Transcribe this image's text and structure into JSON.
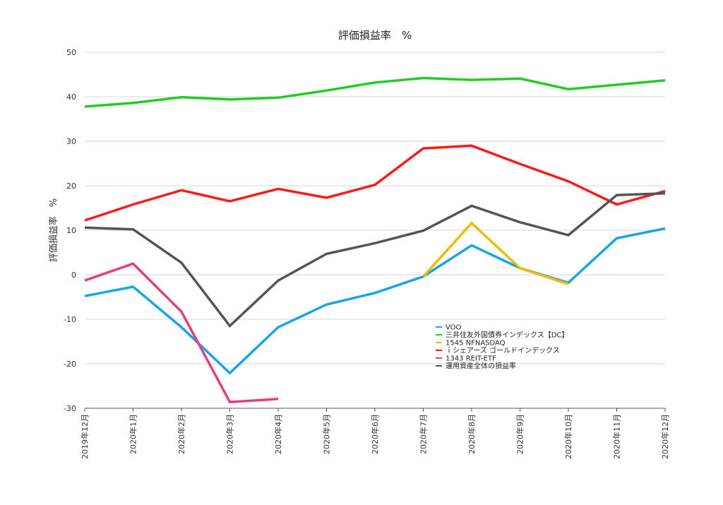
{
  "chart_data": {
    "type": "line",
    "title": "評価損益率　%",
    "xlabel": "",
    "ylabel": "評価損益率　%",
    "ylim": [
      -30,
      50
    ],
    "yticks": [
      50,
      40,
      30,
      20,
      10,
      0,
      -10,
      -20,
      -30
    ],
    "grid": true,
    "legend_position": "lower-right",
    "categories": [
      "2019年12月",
      "2020年1月",
      "2020年2月",
      "2020年3月",
      "2020年4月",
      "2020年5月",
      "2020年6月",
      "2020年7月",
      "2020年8月",
      "2020年9月",
      "2020年10月",
      "2020年11月",
      "2020年12月"
    ],
    "series": [
      {
        "name": "VOO",
        "color": "#1aa3ee",
        "values": [
          -4.8,
          -2.7,
          -11.8,
          -22.1,
          -11.8,
          -6.7,
          -4.1,
          -0.4,
          6.6,
          1.5,
          -1.8,
          8.2,
          10.4
        ]
      },
      {
        "name": "三井住友外国債券インデックス【DC】",
        "color": "#22cc22",
        "values": [
          37.8,
          38.6,
          39.9,
          39.4,
          39.8,
          41.4,
          43.2,
          44.2,
          43.8,
          44.1,
          41.7,
          42.7,
          43.7
        ]
      },
      {
        "name": "1545 NFNASDAQ",
        "color": "#f5b800",
        "values": [
          null,
          null,
          null,
          null,
          null,
          null,
          null,
          -0.4,
          11.6,
          1.5,
          -2.1,
          null,
          null
        ]
      },
      {
        "name": "ｉシェアーズ ゴールドインデックス",
        "color": "#ff1a1a",
        "values": [
          12.2,
          15.8,
          19.0,
          16.5,
          19.3,
          17.3,
          20.2,
          28.4,
          29.0,
          24.9,
          21.0,
          15.8,
          18.8
        ]
      },
      {
        "name": "1343 REIT-ETF",
        "color": "#e0407f",
        "values": [
          -1.3,
          2.5,
          -8.3,
          -28.6,
          -27.9,
          null,
          null,
          null,
          null,
          null,
          null,
          null,
          null
        ]
      },
      {
        "name": "運用資産全体の損益率",
        "color": "#555555",
        "values": [
          10.6,
          10.2,
          2.7,
          -11.5,
          -1.3,
          4.7,
          7.1,
          9.9,
          15.5,
          11.8,
          8.9,
          17.9,
          18.3
        ]
      }
    ]
  }
}
